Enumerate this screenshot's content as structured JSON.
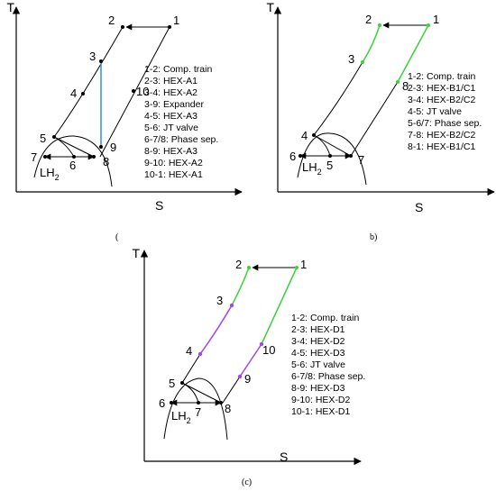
{
  "colors": {
    "line": "#000000",
    "blue": "#2f8fe0",
    "green": "#39d339",
    "purple": "#a347e8"
  },
  "panels": [
    {
      "id": "a",
      "axis_y": "T",
      "axis_x": "S",
      "panel_label": "(",
      "lh2_text": "LH",
      "lh2_sub": "2",
      "points": [
        "1",
        "2",
        "3",
        "4",
        "5",
        "6",
        "7",
        "8",
        "9",
        "10"
      ],
      "legend": [
        "1-2: Comp. train",
        "2-3: HEX-A1",
        "3-4: HEX-A2",
        "3-9: Expander",
        "4-5: HEX-A3",
        "5-6: JT valve",
        "6-7/8: Phase sep.",
        "8-9: HEX-A3",
        "9-10: HEX-A2",
        "10-1: HEX-A1"
      ]
    },
    {
      "id": "b",
      "axis_y": "T",
      "axis_x": "S",
      "panel_label": "b)",
      "lh2_text": "LH",
      "lh2_sub": "2",
      "points": [
        "1",
        "2",
        "3",
        "4",
        "5",
        "6",
        "7",
        "8"
      ],
      "legend": [
        "1-2: Comp. train",
        "2-3: HEX-B1/C1",
        "3-4: HEX-B2/C2",
        "4-5: JT valve",
        "5-6/7: Phase sep.",
        "7-8: HEX-B2/C2",
        "8-1: HEX-B1/C1"
      ]
    },
    {
      "id": "c",
      "axis_y": "T",
      "axis_x": "S",
      "panel_label": "(c)",
      "lh2_text": "LH",
      "lh2_sub": "2",
      "points": [
        "1",
        "2",
        "3",
        "4",
        "5",
        "6",
        "7",
        "8",
        "9",
        "10"
      ],
      "legend": [
        "1-2: Comp. train",
        "2-3: HEX-D1",
        "3-4: HEX-D2",
        "4-5: HEX-D3",
        "5-6: JT valve",
        "6-7/8: Phase sep.",
        "8-9: HEX-D3",
        "9-10: HEX-D2",
        "10-1: HEX-D1"
      ]
    }
  ]
}
